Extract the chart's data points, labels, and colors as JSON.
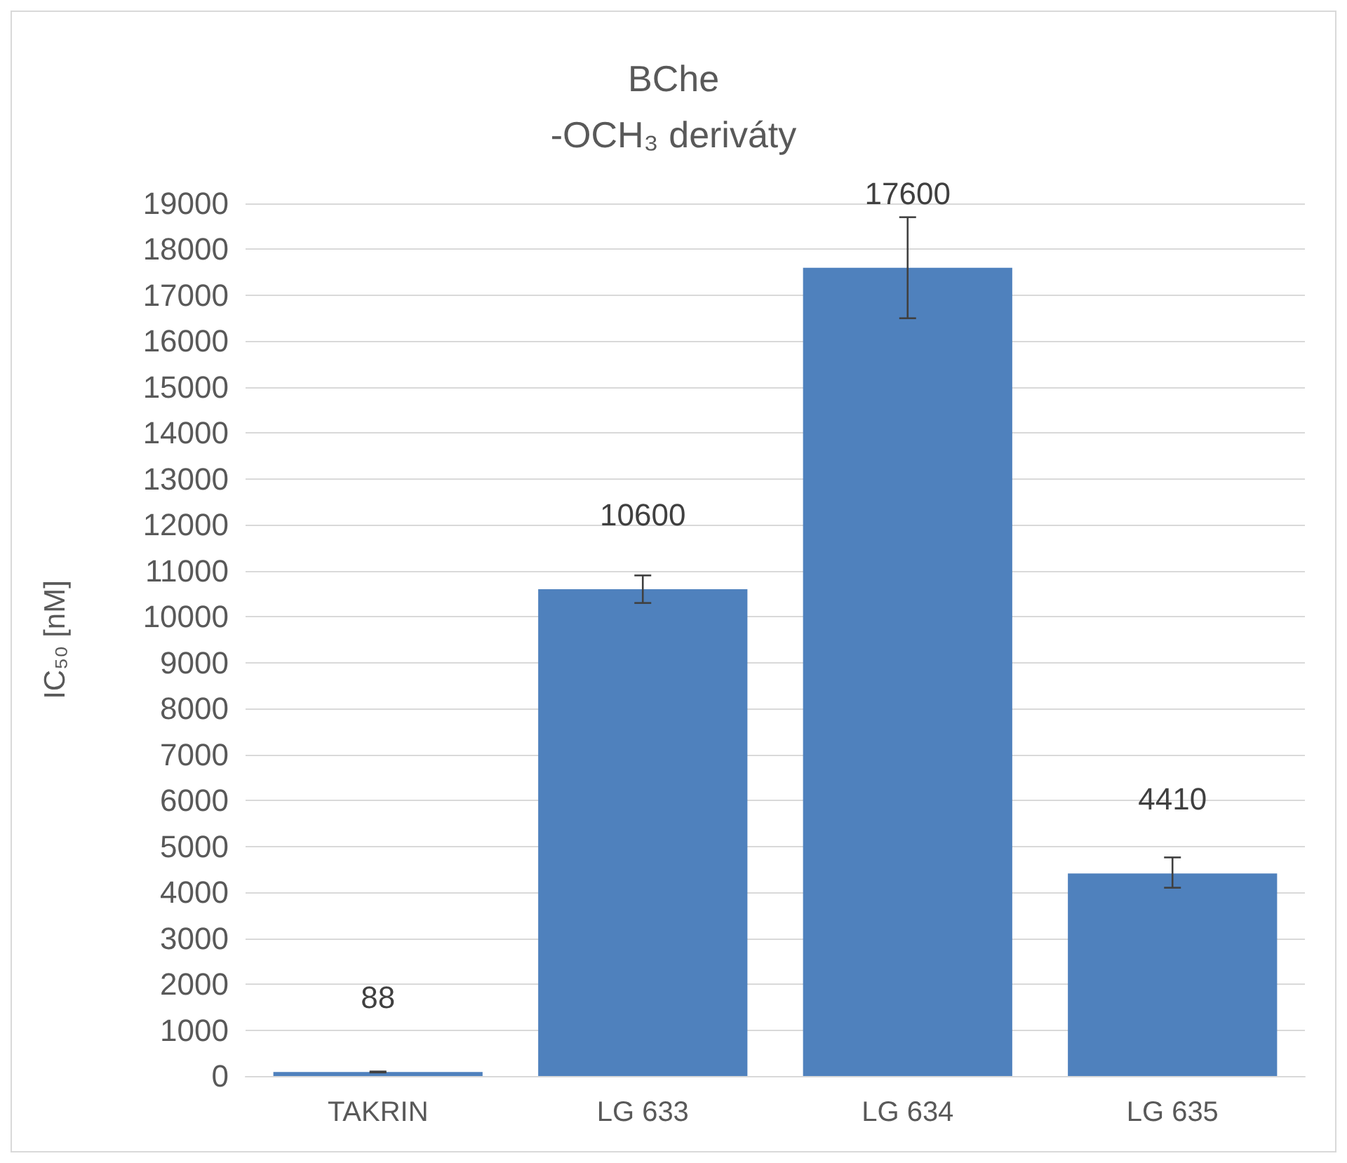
{
  "chart_data": {
    "type": "bar",
    "title": "BChe",
    "subtitle": "-OCH₃ deriváty",
    "ylabel": "IC₅₀ [nM]",
    "categories": [
      "TAKRIN",
      "LG 633",
      "LG 634",
      "LG 635"
    ],
    "values": [
      88,
      10600,
      17600,
      4410
    ],
    "errors": [
      10,
      300,
      [
        16500,
        18700
      ],
      [
        4100,
        4760
      ]
    ],
    "color": "#4f81bd",
    "ylim": [
      0,
      19000
    ],
    "yticks": [
      0,
      1000,
      2000,
      3000,
      4000,
      5000,
      6000,
      7000,
      8000,
      9000,
      10000,
      11000,
      12000,
      13000,
      14000,
      15000,
      16000,
      17000,
      18000,
      19000
    ],
    "grid": "y",
    "data_labels": true
  }
}
